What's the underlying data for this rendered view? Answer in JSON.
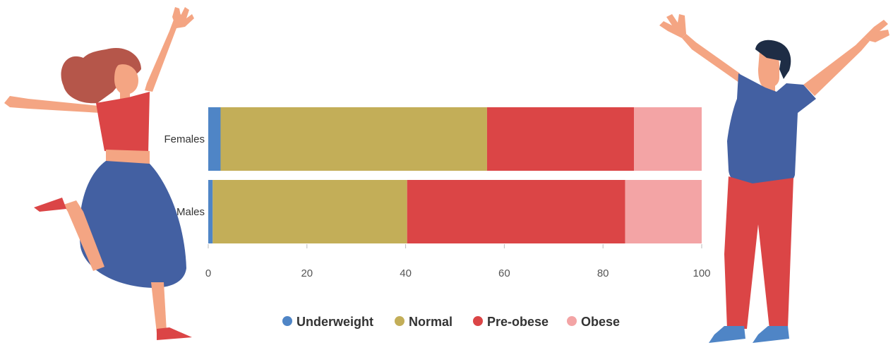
{
  "chart_data": {
    "type": "bar",
    "orientation": "horizontal",
    "stacked": true,
    "categories": [
      "Females",
      "Males"
    ],
    "series": [
      {
        "name": "Underweight",
        "color": "#4F85C6",
        "values": [
          2.5,
          0.9
        ]
      },
      {
        "name": "Normal",
        "color": "#C3AE58",
        "values": [
          54.0,
          39.4
        ]
      },
      {
        "name": "Pre-obese",
        "color": "#DB4546",
        "values": [
          29.8,
          44.2
        ]
      },
      {
        "name": "Obese",
        "color": "#F3A4A5",
        "values": [
          13.7,
          15.5
        ]
      }
    ],
    "title": "",
    "xlabel": "",
    "ylabel": "",
    "xlim": [
      0,
      100
    ],
    "xticks": [
      "0",
      "20",
      "40",
      "60",
      "80",
      "100"
    ],
    "grid": false,
    "legend_position": "bottom"
  },
  "illustrations": {
    "left": "dancing-woman",
    "right": "cheering-man"
  }
}
